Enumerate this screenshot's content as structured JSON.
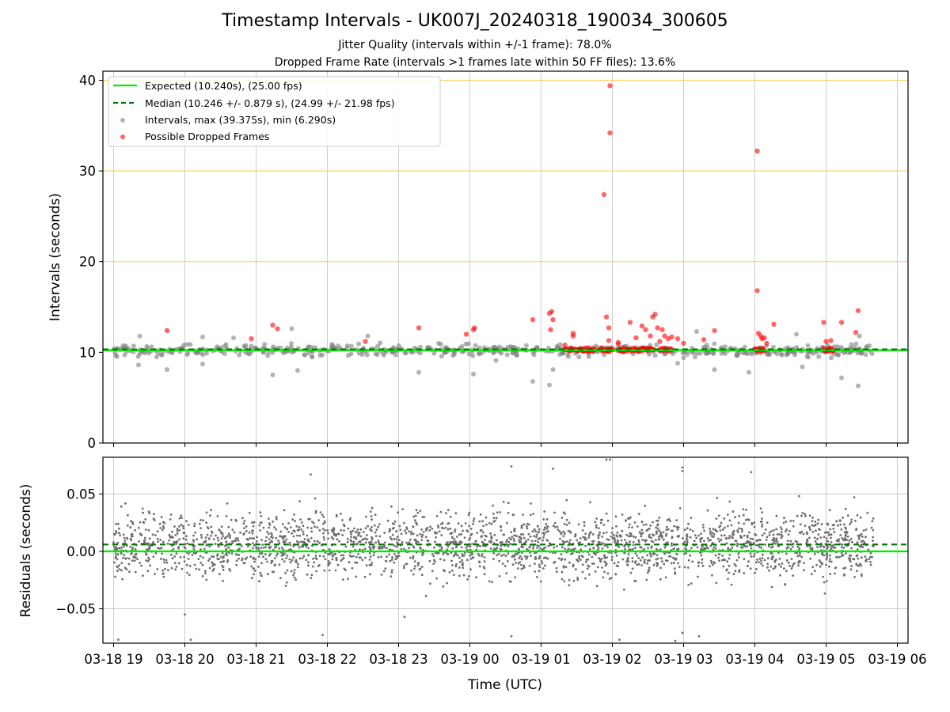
{
  "figure": {
    "title": "Timestamp Intervals - UK007J_20240318_190034_300605",
    "subtitle_1": "Jitter Quality (intervals within +/-1 frame): 78.0%",
    "subtitle_2": "Dropped Frame Rate (intervals >1 frames late within 50 FF files): 13.6%",
    "xlabel": "Time (UTC)",
    "colors": {
      "expected": "#00ee00",
      "median": "#007a00",
      "intervals": "#808080",
      "dropped": "#ff0000",
      "reference": "#ffd36b",
      "grid": "#cccccc"
    }
  },
  "chart_data": [
    {
      "type": "scatter",
      "panel": "top",
      "ylabel": "Intervals (seconds)",
      "x_axis": {
        "type": "time",
        "start": "03-18 18:51",
        "end": "03-19 06:09",
        "ticks": [
          "03-18 19",
          "03-18 20",
          "03-18 21",
          "03-18 22",
          "03-18 23",
          "03-19 00",
          "03-19 01",
          "03-19 02",
          "03-19 03",
          "03-19 04",
          "03-19 05",
          "03-19 06"
        ]
      },
      "ylim": [
        0,
        41
      ],
      "yticks": [
        0,
        10,
        20,
        30,
        40
      ],
      "grid": "x only",
      "reference_lines": [
        20,
        30,
        40
      ],
      "legend": {
        "placement": "top-left",
        "entries": [
          "Expected (10.240s), (25.00 fps)",
          "Median (10.246 +/- 0.879 s), (24.99 +/- 21.98 fps)",
          "Intervals, max (39.375s), min (6.290s)",
          "Possible Dropped Frames"
        ]
      },
      "series": [
        {
          "name": "Expected (10.240s), (25.00 fps)",
          "style": "solid line",
          "y": 10.24
        },
        {
          "name": "Median (10.246 +/- 0.879 s), (24.99 +/- 21.98 fps)",
          "style": "dashed line",
          "y": 10.246
        },
        {
          "name": "Intervals, max (39.375s), min (6.290s)",
          "band": {
            "x_start": "03-18 19:00",
            "x_end": "03-19 05:40",
            "center": 10.2,
            "spread": 0.45
          },
          "notable_points": [
            {
              "x": "03-19 00:53",
              "y": 6.8
            },
            {
              "x": "03-19 01:07",
              "y": 6.4
            },
            {
              "x": "03-19 05:27",
              "y": 6.3
            },
            {
              "x": "03-19 05:13",
              "y": 7.2
            },
            {
              "x": "03-18 21:14",
              "y": 7.5
            },
            {
              "x": "03-19 00:03",
              "y": 7.6
            },
            {
              "x": "03-18 23:17",
              "y": 7.8
            },
            {
              "x": "03-19 03:55",
              "y": 7.8
            },
            {
              "x": "03-18 21:35",
              "y": 8.0
            },
            {
              "x": "03-18 19:45",
              "y": 8.1
            },
            {
              "x": "03-19 01:10",
              "y": 8.1
            },
            {
              "x": "03-19 03:26",
              "y": 8.1
            },
            {
              "x": "03-18 19:21",
              "y": 8.6
            },
            {
              "x": "03-19 04:40",
              "y": 8.4
            },
            {
              "x": "03-18 20:15",
              "y": 8.7
            },
            {
              "x": "03-19 02:55",
              "y": 8.8
            },
            {
              "x": "03-19 00:22",
              "y": 9.1
            },
            {
              "x": "03-18 19:22",
              "y": 11.8
            },
            {
              "x": "03-18 20:15",
              "y": 11.7
            },
            {
              "x": "03-18 20:41",
              "y": 11.6
            },
            {
              "x": "03-18 21:30",
              "y": 12.6
            },
            {
              "x": "03-18 22:34",
              "y": 11.8
            },
            {
              "x": "03-19 03:11",
              "y": 12.3
            },
            {
              "x": "03-19 04:35",
              "y": 12.0
            },
            {
              "x": "03-19 05:28",
              "y": 11.8
            }
          ]
        },
        {
          "name": "Possible Dropped Frames",
          "clusters": [
            {
              "x_start": "03-19 01:20",
              "x_end": "03-19 01:45",
              "y": 10.3
            },
            {
              "x_start": "03-19 01:50",
              "x_end": "03-19 02:00",
              "y": 10.3
            },
            {
              "x_start": "03-19 02:05",
              "x_end": "03-19 02:35",
              "y": 10.3
            },
            {
              "x_start": "03-19 02:40",
              "x_end": "03-19 02:50",
              "y": 10.3
            },
            {
              "x_start": "03-19 04:00",
              "x_end": "03-19 04:08",
              "y": 10.3
            },
            {
              "x_start": "03-19 04:58",
              "x_end": "03-19 05:06",
              "y": 10.3
            }
          ],
          "points": [
            {
              "x": "03-18 19:45",
              "y": 12.4
            },
            {
              "x": "03-18 20:56",
              "y": 11.5
            },
            {
              "x": "03-18 21:14",
              "y": 13.0
            },
            {
              "x": "03-18 21:18",
              "y": 12.6
            },
            {
              "x": "03-18 22:32",
              "y": 11.2
            },
            {
              "x": "03-18 23:17",
              "y": 12.7
            },
            {
              "x": "03-18 23:57",
              "y": 12.0
            },
            {
              "x": "03-19 00:03",
              "y": 12.5
            },
            {
              "x": "03-19 00:04",
              "y": 12.7
            },
            {
              "x": "03-19 00:53",
              "y": 13.6
            },
            {
              "x": "03-19 01:07",
              "y": 14.3
            },
            {
              "x": "03-19 01:09",
              "y": 14.5
            },
            {
              "x": "03-19 01:08",
              "y": 12.5
            },
            {
              "x": "03-19 01:10",
              "y": 13.6
            },
            {
              "x": "03-19 01:20",
              "y": 10.8
            },
            {
              "x": "03-19 01:27",
              "y": 12.1
            },
            {
              "x": "03-19 01:27",
              "y": 11.8
            },
            {
              "x": "03-19 01:40",
              "y": 10.5
            },
            {
              "x": "03-19 01:53",
              "y": 27.4
            },
            {
              "x": "03-19 01:58",
              "y": 39.4
            },
            {
              "x": "03-19 01:58",
              "y": 34.2
            },
            {
              "x": "03-19 01:55",
              "y": 13.9
            },
            {
              "x": "03-19 01:57",
              "y": 12.7
            },
            {
              "x": "03-19 01:57",
              "y": 11.3
            },
            {
              "x": "03-19 02:05",
              "y": 10.9
            },
            {
              "x": "03-19 02:05",
              "y": 11.1
            },
            {
              "x": "03-19 02:15",
              "y": 13.3
            },
            {
              "x": "03-19 02:20",
              "y": 11.6
            },
            {
              "x": "03-19 02:25",
              "y": 12.9
            },
            {
              "x": "03-19 02:28",
              "y": 12.5
            },
            {
              "x": "03-19 02:32",
              "y": 11.8
            },
            {
              "x": "03-19 02:34",
              "y": 13.9
            },
            {
              "x": "03-19 02:36",
              "y": 14.2
            },
            {
              "x": "03-19 02:38",
              "y": 12.7
            },
            {
              "x": "03-19 02:40",
              "y": 11.2
            },
            {
              "x": "03-19 02:42",
              "y": 12.5
            },
            {
              "x": "03-19 02:44",
              "y": 11.8
            },
            {
              "x": "03-19 02:47",
              "y": 11.5
            },
            {
              "x": "03-19 02:50",
              "y": 11.7
            },
            {
              "x": "03-19 02:55",
              "y": 11.5
            },
            {
              "x": "03-19 03:00",
              "y": 11.0
            },
            {
              "x": "03-19 03:17",
              "y": 11.4
            },
            {
              "x": "03-19 03:26",
              "y": 12.4
            },
            {
              "x": "03-19 04:02",
              "y": 32.2
            },
            {
              "x": "03-19 04:02",
              "y": 16.8
            },
            {
              "x": "03-19 04:03",
              "y": 12.1
            },
            {
              "x": "03-19 04:05",
              "y": 11.8
            },
            {
              "x": "03-19 04:06",
              "y": 11.5
            },
            {
              "x": "03-19 04:08",
              "y": 11.6
            },
            {
              "x": "03-19 04:10",
              "y": 11.0
            },
            {
              "x": "03-19 04:16",
              "y": 13.1
            },
            {
              "x": "03-19 04:58",
              "y": 13.3
            },
            {
              "x": "03-19 05:00",
              "y": 11.2
            },
            {
              "x": "03-19 05:04",
              "y": 11.3
            },
            {
              "x": "03-19 05:13",
              "y": 13.3
            },
            {
              "x": "03-19 05:25",
              "y": 12.2
            },
            {
              "x": "03-19 05:27",
              "y": 14.6
            }
          ]
        }
      ]
    },
    {
      "type": "scatter",
      "panel": "bottom",
      "ylabel": "Residuals (seconds)",
      "ylim": [
        -0.08,
        0.082
      ],
      "yticks": [
        0.05,
        0.0,
        -0.05
      ],
      "ytick_labels": [
        "0.05",
        "0.00",
        "−0.05"
      ],
      "grid": "both",
      "series": [
        {
          "name": "Expected (10.240s), (25.00 fps)",
          "style": "solid line",
          "y": 0.0
        },
        {
          "name": "Median (10.246 +/- 0.879 s), (24.99 +/- 21.98 fps)",
          "style": "dashed line",
          "y": 0.006
        },
        {
          "name": "Intervals, max (39.375s), min (6.290s)",
          "band": {
            "x_start": "03-18 19:00",
            "x_end": "03-19 05:40",
            "center": 0.006,
            "spread": 0.02,
            "count": 2600
          },
          "notable_points": [
            {
              "x": "03-19 00:35",
              "y": 0.074
            },
            {
              "x": "03-19 01:10",
              "y": 0.072
            },
            {
              "x": "03-19 01:55",
              "y": 0.08
            },
            {
              "x": "03-19 01:58",
              "y": 0.08
            },
            {
              "x": "03-19 02:59",
              "y": 0.073
            },
            {
              "x": "03-19 02:59",
              "y": 0.07
            },
            {
              "x": "03-18 21:46",
              "y": 0.067
            },
            {
              "x": "03-19 03:57",
              "y": 0.069
            },
            {
              "x": "03-18 19:04",
              "y": -0.077
            },
            {
              "x": "03-18 20:05",
              "y": -0.077
            },
            {
              "x": "03-18 21:56",
              "y": -0.073
            },
            {
              "x": "03-19 00:35",
              "y": -0.074
            },
            {
              "x": "03-19 02:06",
              "y": -0.077
            },
            {
              "x": "03-19 02:53",
              "y": -0.078
            },
            {
              "x": "03-19 02:59",
              "y": -0.071
            },
            {
              "x": "03-19 03:13",
              "y": -0.074
            },
            {
              "x": "03-18 20:00",
              "y": -0.055
            },
            {
              "x": "03-18 23:05",
              "y": -0.057
            }
          ]
        }
      ]
    }
  ]
}
